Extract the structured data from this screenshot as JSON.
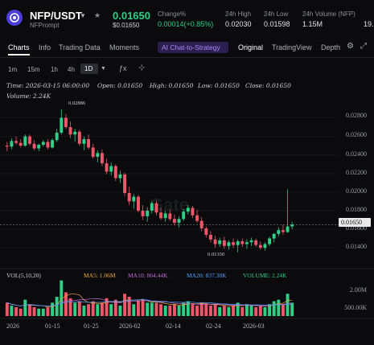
{
  "header": {
    "pair": "NFP/USDT",
    "subtitle": "NFPrompt",
    "price": "0.01650",
    "price_usd": "$0.01650",
    "stats": [
      {
        "label": "Change%",
        "value": "0.00014(+0.85%)"
      },
      {
        "label": "24h High",
        "value": "0.02030"
      },
      {
        "label": "24h Low",
        "value": "0.01598"
      },
      {
        "label": "24h Volume (NFP)",
        "value": "1.15M"
      },
      {
        "label": "",
        "value": "19."
      }
    ]
  },
  "tabs": {
    "left": [
      "Charts",
      "Info",
      "Trading Data",
      "Moments"
    ],
    "ai_label": "AI Chat-to-Strategy",
    "right": [
      "Original",
      "TradingView",
      "Depth"
    ]
  },
  "timeframes": [
    "1m",
    "15m",
    "1h",
    "4h",
    "1D"
  ],
  "ohlc": {
    "time": "Time: 2026-03-15 06:00:00",
    "open": "Open: 0.01650",
    "high": "High: 0.01650",
    "low": "Low: 0.01650",
    "close": "Close: 0.01650",
    "volume": "Volume: 2.24K"
  },
  "annotations": {
    "max": "0.02886",
    "min": "0.01350",
    "current": "0.01650",
    "watermark": "Gate"
  },
  "volume_legend": {
    "vol": "VOL(5,10,20)",
    "ma5": "MA5: 1.06M",
    "ma10": "MA10: 864.44K",
    "ma20": "MA20: 837.38K",
    "volume": "VOLUME: 2.24K"
  },
  "volume_axis": [
    "2.00M",
    "500.00K"
  ],
  "colors": {
    "up": "#2fcf85",
    "down": "#f0566a",
    "bg": "#0b0b0d",
    "ai": "#8b6cff"
  },
  "chart_data": {
    "type": "candlestick",
    "y_ticks": [
      "0.02800",
      "0.02600",
      "0.02400",
      "0.02200",
      "0.02000",
      "0.01800",
      "0.01600",
      "0.01400"
    ],
    "ylim": [
      0.0128,
      0.0296
    ],
    "x_ticks": [
      "2026",
      "01-15",
      "01-25",
      "2026-02",
      "02-14",
      "02-24",
      "2026-03"
    ],
    "candles": [
      [
        0.025,
        0.0254,
        0.0244,
        0.0249
      ],
      [
        0.0249,
        0.0258,
        0.0246,
        0.0255
      ],
      [
        0.0255,
        0.026,
        0.0251,
        0.0253
      ],
      [
        0.0253,
        0.0257,
        0.0248,
        0.025
      ],
      [
        0.025,
        0.0262,
        0.0249,
        0.026
      ],
      [
        0.026,
        0.0262,
        0.025,
        0.0252
      ],
      [
        0.0252,
        0.0256,
        0.0245,
        0.0247
      ],
      [
        0.0247,
        0.0252,
        0.0244,
        0.0251
      ],
      [
        0.0251,
        0.0256,
        0.0249,
        0.0254
      ],
      [
        0.0254,
        0.0257,
        0.0246,
        0.0248
      ],
      [
        0.0248,
        0.0258,
        0.0247,
        0.0256
      ],
      [
        0.0256,
        0.0268,
        0.0254,
        0.0264
      ],
      [
        0.0264,
        0.0289,
        0.0262,
        0.028
      ],
      [
        0.028,
        0.0284,
        0.0268,
        0.027
      ],
      [
        0.027,
        0.0276,
        0.0258,
        0.0262
      ],
      [
        0.0262,
        0.0268,
        0.0254,
        0.0265
      ],
      [
        0.0265,
        0.0267,
        0.025,
        0.0252
      ],
      [
        0.0252,
        0.026,
        0.0245,
        0.0257
      ],
      [
        0.0257,
        0.0262,
        0.0246,
        0.0248
      ],
      [
        0.0248,
        0.0252,
        0.0236,
        0.0238
      ],
      [
        0.0238,
        0.0245,
        0.0232,
        0.0242
      ],
      [
        0.0242,
        0.0246,
        0.0228,
        0.0231
      ],
      [
        0.0231,
        0.0236,
        0.0219,
        0.0222
      ],
      [
        0.0222,
        0.0232,
        0.0218,
        0.0228
      ],
      [
        0.0228,
        0.023,
        0.0212,
        0.0215
      ],
      [
        0.0215,
        0.0223,
        0.021,
        0.0219
      ],
      [
        0.0219,
        0.0221,
        0.0196,
        0.0199
      ],
      [
        0.0199,
        0.0206,
        0.0186,
        0.019
      ],
      [
        0.019,
        0.0198,
        0.0182,
        0.0195
      ],
      [
        0.0195,
        0.0197,
        0.0178,
        0.018
      ],
      [
        0.018,
        0.0186,
        0.017,
        0.0174
      ],
      [
        0.0174,
        0.0184,
        0.0168,
        0.018
      ],
      [
        0.018,
        0.019,
        0.0177,
        0.0188
      ],
      [
        0.0188,
        0.0191,
        0.0175,
        0.0178
      ],
      [
        0.0178,
        0.0183,
        0.017,
        0.0172
      ],
      [
        0.0172,
        0.018,
        0.0168,
        0.0177
      ],
      [
        0.0177,
        0.0181,
        0.0169,
        0.0171
      ],
      [
        0.0171,
        0.0176,
        0.0164,
        0.0167
      ],
      [
        0.0167,
        0.0174,
        0.0162,
        0.0171
      ],
      [
        0.0171,
        0.0182,
        0.0169,
        0.0179
      ],
      [
        0.0179,
        0.0186,
        0.0176,
        0.0183
      ],
      [
        0.0183,
        0.0185,
        0.0172,
        0.0175
      ],
      [
        0.0175,
        0.0181,
        0.0167,
        0.0169
      ],
      [
        0.0169,
        0.0173,
        0.0158,
        0.0161
      ],
      [
        0.0161,
        0.0163,
        0.0151,
        0.0154
      ],
      [
        0.0154,
        0.0158,
        0.0146,
        0.0149
      ],
      [
        0.0149,
        0.0153,
        0.014,
        0.0144
      ],
      [
        0.0144,
        0.0151,
        0.0141,
        0.0148
      ],
      [
        0.0148,
        0.0152,
        0.0139,
        0.0142
      ],
      [
        0.0142,
        0.0148,
        0.0138,
        0.0146
      ],
      [
        0.0146,
        0.015,
        0.014,
        0.0143
      ],
      [
        0.0143,
        0.0149,
        0.0135,
        0.0147
      ],
      [
        0.0147,
        0.015,
        0.0141,
        0.0144
      ],
      [
        0.0144,
        0.0149,
        0.0139,
        0.0146
      ],
      [
        0.0146,
        0.0151,
        0.0142,
        0.0148
      ],
      [
        0.0148,
        0.015,
        0.0141,
        0.0143
      ],
      [
        0.0143,
        0.0147,
        0.0138,
        0.014
      ],
      [
        0.014,
        0.0146,
        0.0137,
        0.0144
      ],
      [
        0.0144,
        0.0152,
        0.0142,
        0.015
      ],
      [
        0.015,
        0.0156,
        0.0146,
        0.0155
      ],
      [
        0.0155,
        0.0162,
        0.0152,
        0.0159
      ],
      [
        0.0159,
        0.0165,
        0.0154,
        0.0157
      ],
      [
        0.0157,
        0.0203,
        0.0156,
        0.0163
      ],
      [
        0.0163,
        0.0168,
        0.016,
        0.0165
      ]
    ],
    "volumes": [
      0.9,
      0.7,
      0.6,
      0.5,
      1.1,
      0.8,
      0.6,
      0.5,
      0.5,
      0.6,
      0.9,
      1.3,
      2.4,
      1.6,
      1.2,
      0.9,
      1.0,
      0.7,
      0.8,
      1.0,
      0.8,
      0.9,
      1.2,
      0.8,
      1.1,
      0.7,
      1.5,
      1.3,
      0.8,
      1.0,
      1.1,
      0.9,
      0.9,
      0.9,
      0.8,
      0.7,
      0.7,
      0.8,
      0.7,
      0.9,
      1.0,
      0.8,
      0.7,
      0.9,
      0.8,
      0.7,
      0.8,
      0.6,
      0.7,
      0.6,
      0.7,
      0.9,
      0.6,
      0.8,
      0.7,
      0.6,
      0.7,
      0.6,
      0.8,
      1.0,
      1.1,
      0.8,
      1.5,
      0.9
    ]
  }
}
